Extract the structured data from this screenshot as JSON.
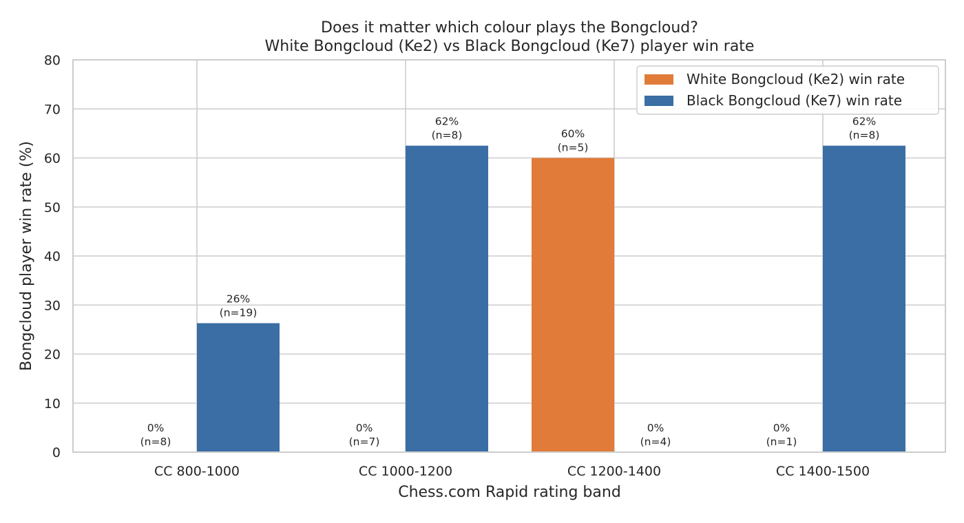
{
  "chart_data": {
    "type": "bar",
    "title": "Does it matter which colour plays the Bongcloud?",
    "subtitle": "White Bongcloud (Ke2) vs Black Bongcloud (Ke7) player win rate",
    "xlabel": "Chess.com Rapid rating band",
    "ylabel": "Bongcloud player win rate (%)",
    "ylim": [
      0,
      80
    ],
    "yticks": [
      "0",
      "10",
      "20",
      "30",
      "40",
      "50",
      "60",
      "70",
      "80"
    ],
    "grid": true,
    "legend_position": "top-right",
    "categories": [
      "CC 800-1000",
      "CC 1000-1200",
      "CC 1200-1400",
      "CC 1400-1500"
    ],
    "series": [
      {
        "name": "White Bongcloud (Ke2) win rate",
        "color": "#e07b39",
        "values": [
          0,
          0,
          60,
          0
        ],
        "labels": [
          "0%",
          "0%",
          "60%",
          "0%"
        ],
        "n_labels": [
          "(n=8)",
          "(n=7)",
          "(n=5)",
          "(n=1)"
        ]
      },
      {
        "name": "Black Bongcloud (Ke7) win rate",
        "color": "#3a6ea5",
        "values": [
          26.3,
          62.5,
          0,
          62.5
        ],
        "labels": [
          "26%",
          "62%",
          "0%",
          "62%"
        ],
        "n_labels": [
          "(n=19)",
          "(n=8)",
          "(n=4)",
          "(n=8)"
        ]
      }
    ]
  }
}
